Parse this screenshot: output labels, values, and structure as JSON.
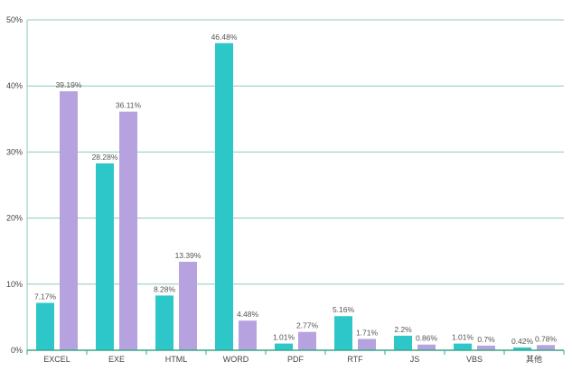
{
  "chart_data": {
    "type": "bar",
    "categories": [
      "EXCEL",
      "EXE",
      "HTML",
      "WORD",
      "PDF",
      "RTF",
      "JS",
      "VBS",
      "其他"
    ],
    "series": [
      {
        "color": "#2ec7c9",
        "values": [
          7.17,
          28.28,
          8.28,
          46.48,
          1.01,
          5.16,
          2.2,
          1.01,
          0.42
        ],
        "labels": [
          "7.17%",
          "28.28%",
          "8.28%",
          "46.48%",
          "1.01%",
          "5.16%",
          "2.2%",
          "1.01%",
          "0.42%"
        ]
      },
      {
        "color": "#b6a2de",
        "values": [
          39.19,
          36.11,
          13.39,
          4.48,
          2.77,
          1.71,
          0.86,
          0.7,
          0.78
        ],
        "labels": [
          "39.19%",
          "36.11%",
          "13.39%",
          "4.48%",
          "2.77%",
          "1.71%",
          "0.86%",
          "0.7%",
          "0.78%"
        ]
      }
    ],
    "y_ticks": [
      "0%",
      "10%",
      "20%",
      "30%",
      "40%",
      "50%"
    ],
    "ylim": [
      0,
      50
    ],
    "grid": true,
    "grid_color": "#8fc9b4",
    "axis_color": "#3aa68a",
    "legend": "none"
  }
}
